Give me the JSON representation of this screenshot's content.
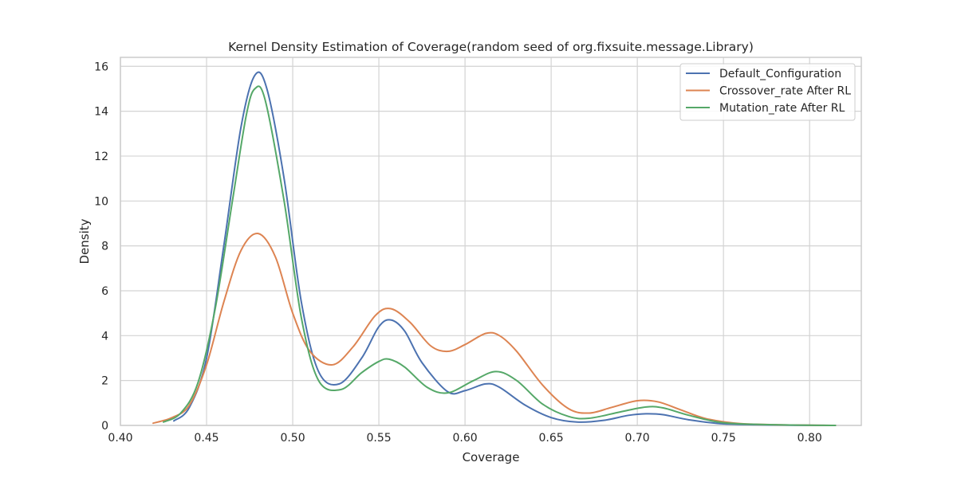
{
  "chart_data": {
    "type": "line",
    "title": "Kernel Density Estimation of Coverage(random seed of org.fixsuite.message.Library)",
    "xlabel": "Coverage",
    "ylabel": "Density",
    "xlim": [
      0.4,
      0.83
    ],
    "ylim": [
      0,
      16.4
    ],
    "x_ticks": [
      "0.40",
      "0.45",
      "0.50",
      "0.55",
      "0.60",
      "0.65",
      "0.70",
      "0.75",
      "0.80"
    ],
    "y_ticks": [
      "0",
      "2",
      "4",
      "6",
      "8",
      "10",
      "12",
      "14",
      "16"
    ],
    "grid": true,
    "legend_position": "top-right",
    "series": [
      {
        "name": "Default_Configuration",
        "color": "#4c72b0",
        "points": [
          [
            0.431,
            0.2
          ],
          [
            0.44,
            0.8
          ],
          [
            0.45,
            3.0
          ],
          [
            0.46,
            8.0
          ],
          [
            0.47,
            13.3
          ],
          [
            0.478,
            15.6
          ],
          [
            0.485,
            15.0
          ],
          [
            0.495,
            11.0
          ],
          [
            0.505,
            5.5
          ],
          [
            0.515,
            2.4
          ],
          [
            0.527,
            1.85
          ],
          [
            0.54,
            3.0
          ],
          [
            0.55,
            4.4
          ],
          [
            0.557,
            4.7
          ],
          [
            0.565,
            4.2
          ],
          [
            0.575,
            2.8
          ],
          [
            0.59,
            1.5
          ],
          [
            0.6,
            1.55
          ],
          [
            0.612,
            1.85
          ],
          [
            0.62,
            1.7
          ],
          [
            0.635,
            0.9
          ],
          [
            0.65,
            0.35
          ],
          [
            0.665,
            0.15
          ],
          [
            0.68,
            0.22
          ],
          [
            0.695,
            0.45
          ],
          [
            0.705,
            0.52
          ],
          [
            0.715,
            0.48
          ],
          [
            0.73,
            0.25
          ],
          [
            0.75,
            0.07
          ],
          [
            0.78,
            0.02
          ],
          [
            0.81,
            0.0
          ]
        ]
      },
      {
        "name": "Crossover_rate After RL",
        "color": "#dd8452",
        "points": [
          [
            0.419,
            0.1
          ],
          [
            0.43,
            0.35
          ],
          [
            0.44,
            0.9
          ],
          [
            0.45,
            2.7
          ],
          [
            0.46,
            5.5
          ],
          [
            0.47,
            7.8
          ],
          [
            0.48,
            8.55
          ],
          [
            0.49,
            7.5
          ],
          [
            0.5,
            5.0
          ],
          [
            0.51,
            3.3
          ],
          [
            0.523,
            2.7
          ],
          [
            0.535,
            3.5
          ],
          [
            0.548,
            4.9
          ],
          [
            0.557,
            5.2
          ],
          [
            0.568,
            4.6
          ],
          [
            0.58,
            3.55
          ],
          [
            0.59,
            3.3
          ],
          [
            0.6,
            3.6
          ],
          [
            0.612,
            4.1
          ],
          [
            0.62,
            4.0
          ],
          [
            0.63,
            3.3
          ],
          [
            0.645,
            1.8
          ],
          [
            0.66,
            0.75
          ],
          [
            0.672,
            0.55
          ],
          [
            0.685,
            0.8
          ],
          [
            0.7,
            1.1
          ],
          [
            0.712,
            1.05
          ],
          [
            0.725,
            0.7
          ],
          [
            0.74,
            0.3
          ],
          [
            0.76,
            0.08
          ],
          [
            0.79,
            0.02
          ],
          [
            0.815,
            0.0
          ]
        ]
      },
      {
        "name": "Mutation_rate After RL",
        "color": "#55a868",
        "points": [
          [
            0.425,
            0.15
          ],
          [
            0.435,
            0.55
          ],
          [
            0.445,
            1.9
          ],
          [
            0.455,
            5.2
          ],
          [
            0.465,
            10.0
          ],
          [
            0.473,
            13.8
          ],
          [
            0.478,
            15.0
          ],
          [
            0.484,
            14.5
          ],
          [
            0.495,
            10.0
          ],
          [
            0.505,
            4.8
          ],
          [
            0.515,
            2.0
          ],
          [
            0.528,
            1.6
          ],
          [
            0.54,
            2.35
          ],
          [
            0.55,
            2.85
          ],
          [
            0.556,
            2.95
          ],
          [
            0.565,
            2.6
          ],
          [
            0.578,
            1.7
          ],
          [
            0.59,
            1.45
          ],
          [
            0.605,
            2.0
          ],
          [
            0.618,
            2.4
          ],
          [
            0.63,
            2.0
          ],
          [
            0.645,
            0.95
          ],
          [
            0.66,
            0.4
          ],
          [
            0.672,
            0.32
          ],
          [
            0.69,
            0.6
          ],
          [
            0.705,
            0.82
          ],
          [
            0.715,
            0.78
          ],
          [
            0.73,
            0.45
          ],
          [
            0.75,
            0.12
          ],
          [
            0.78,
            0.03
          ],
          [
            0.815,
            0.0
          ]
        ]
      }
    ]
  }
}
